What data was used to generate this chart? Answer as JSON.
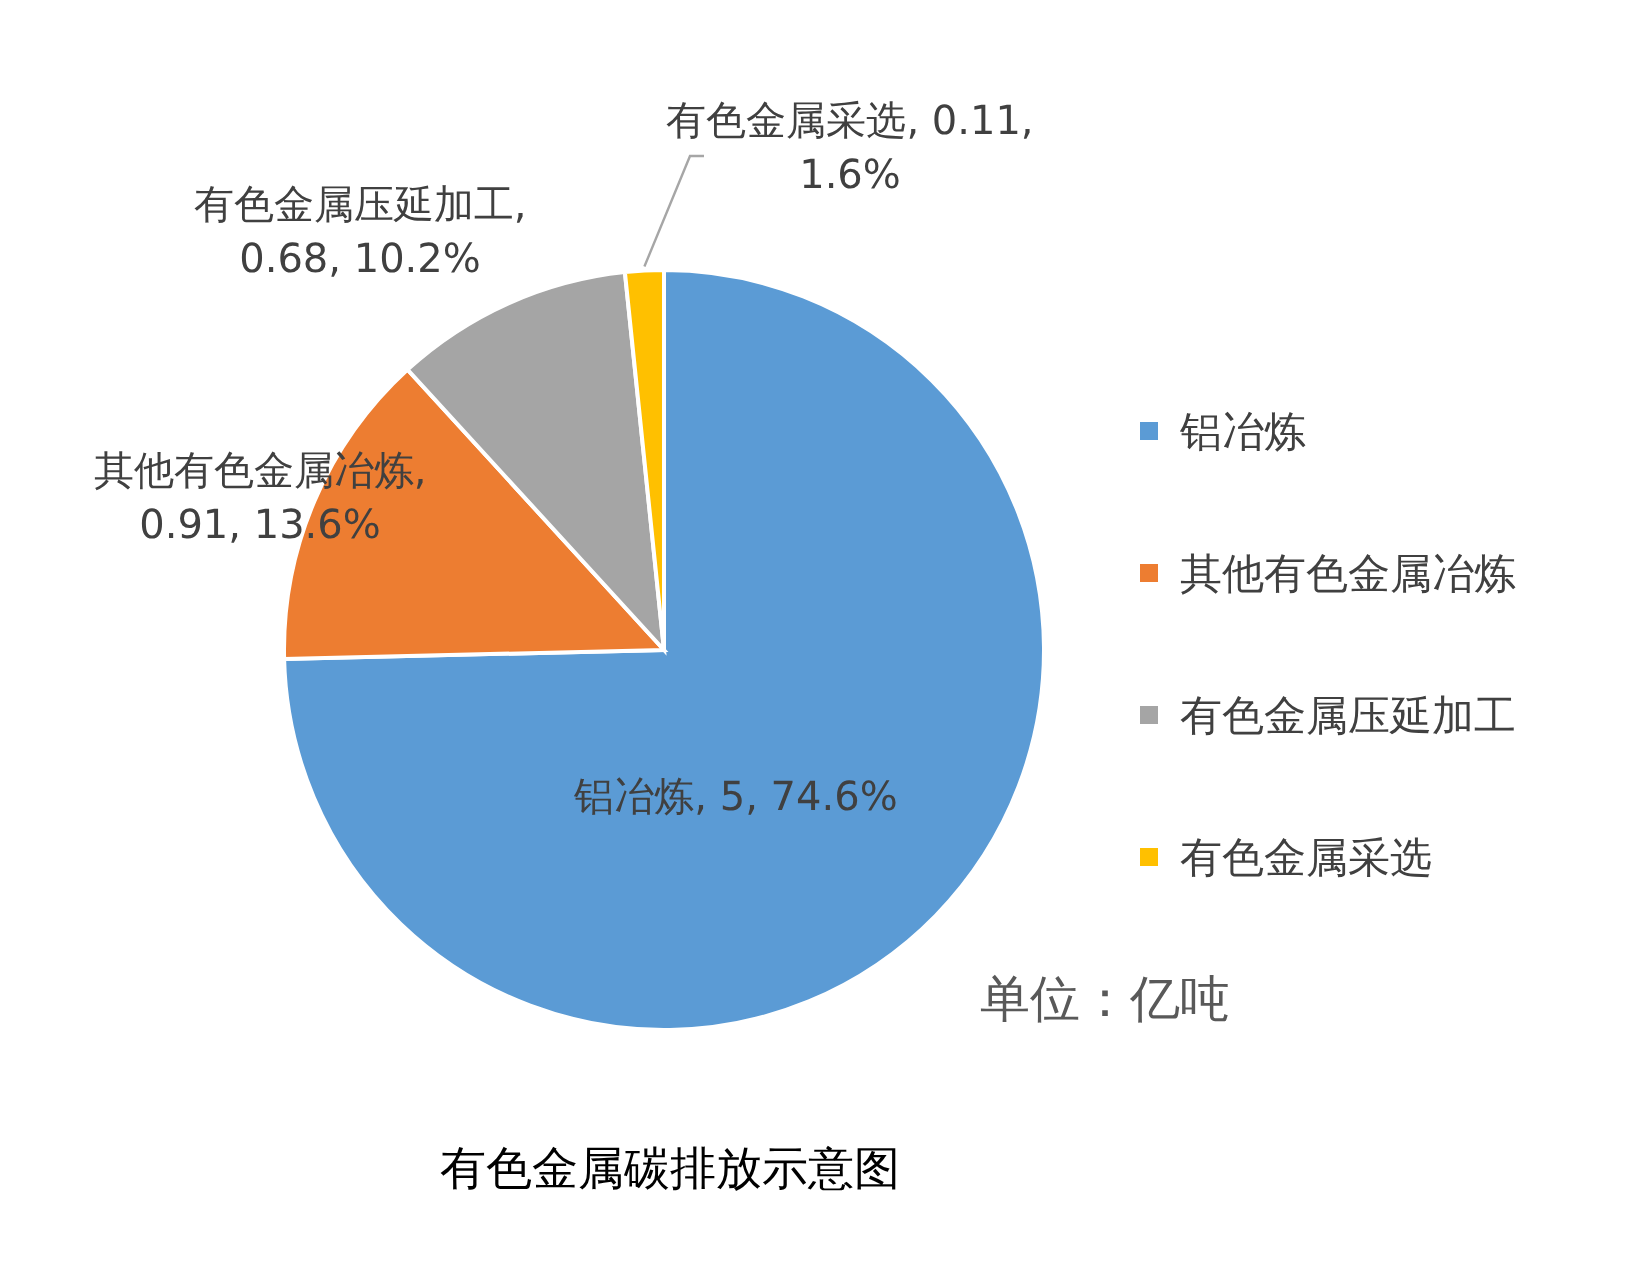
{
  "chart_data": {
    "type": "pie",
    "title": "有色金属碳排放示意图",
    "categories": [
      "铝冶炼",
      "其他有色金属冶炼",
      "有色金属压延加工",
      "有色金属采选"
    ],
    "values": [
      5,
      0.91,
      0.68,
      0.11
    ],
    "colors": [
      "#5b9bd5",
      "#ed7d31",
      "#a5a5a5",
      "#ffc000"
    ],
    "value_labels": [
      "铝冶炼, 5, 74.6%",
      "其他有色金属冶炼, 0.91, 13.6%",
      "有色金属压延加工, 0.68, 10.2%",
      "有色金属采选, 0.11, 1.6%"
    ],
    "legend": "right",
    "annotations": [
      "单位：亿吨"
    ]
  }
}
